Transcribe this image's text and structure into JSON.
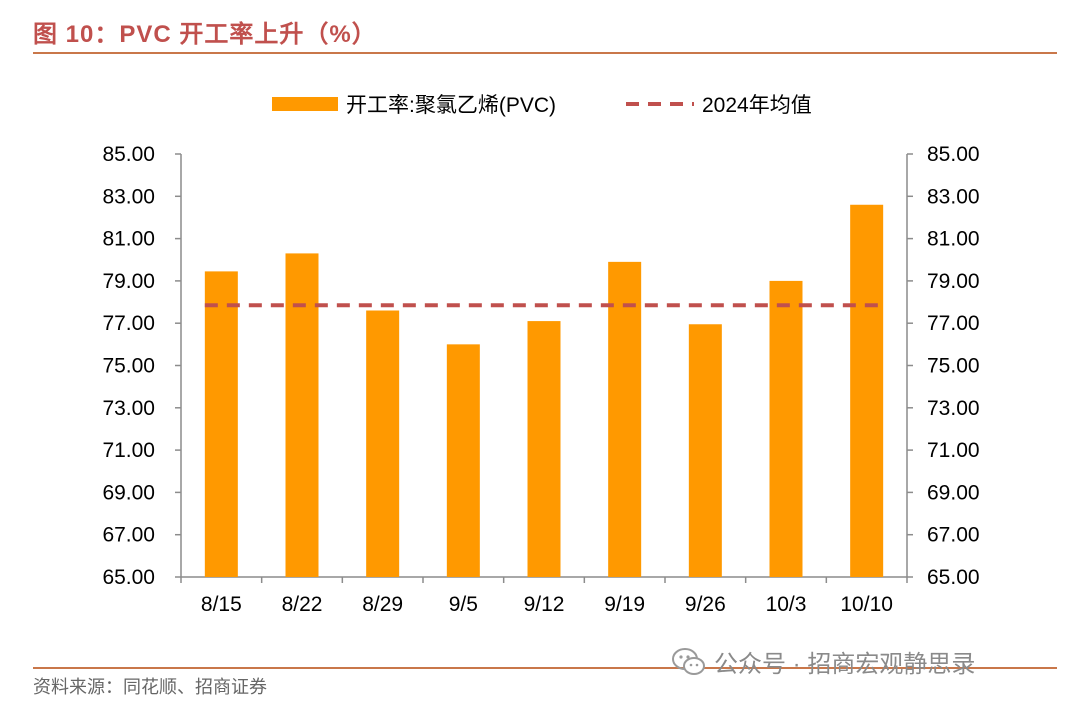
{
  "figure": {
    "title": "图 10：PVC 开工率上升（%）"
  },
  "source": "资料来源：同花顺、招商证券",
  "watermark": {
    "text": "公众号 · 招商宏观静思录",
    "icon": "wechat-icon"
  },
  "colors": {
    "bar": "#ff9900",
    "avg": "#c0504d",
    "title": "#c0504d",
    "rule": "#c9774a"
  },
  "chart_data": {
    "type": "bar",
    "categories": [
      "8/15",
      "8/22",
      "8/29",
      "9/5",
      "9/12",
      "9/19",
      "9/26",
      "10/3",
      "10/10"
    ],
    "series": [
      {
        "name": "开工率:聚氯乙烯(PVC)",
        "type": "bar",
        "values": [
          79.45,
          80.3,
          77.6,
          76.0,
          77.1,
          79.9,
          76.95,
          79.0,
          82.6
        ]
      },
      {
        "name": "2024年均值",
        "type": "line",
        "style": "dashed",
        "values": [
          77.85,
          77.85,
          77.85,
          77.85,
          77.85,
          77.85,
          77.85,
          77.85,
          77.85
        ]
      }
    ],
    "ylim": [
      65,
      85
    ],
    "yticks": [
      "65.00",
      "67.00",
      "69.00",
      "71.00",
      "73.00",
      "75.00",
      "77.00",
      "79.00",
      "81.00",
      "83.00",
      "85.00"
    ],
    "y2ticks": [
      "65.00",
      "67.00",
      "69.00",
      "71.00",
      "73.00",
      "75.00",
      "77.00",
      "79.00",
      "81.00",
      "83.00",
      "85.00"
    ],
    "legend_position": "top-center",
    "grid": false
  }
}
